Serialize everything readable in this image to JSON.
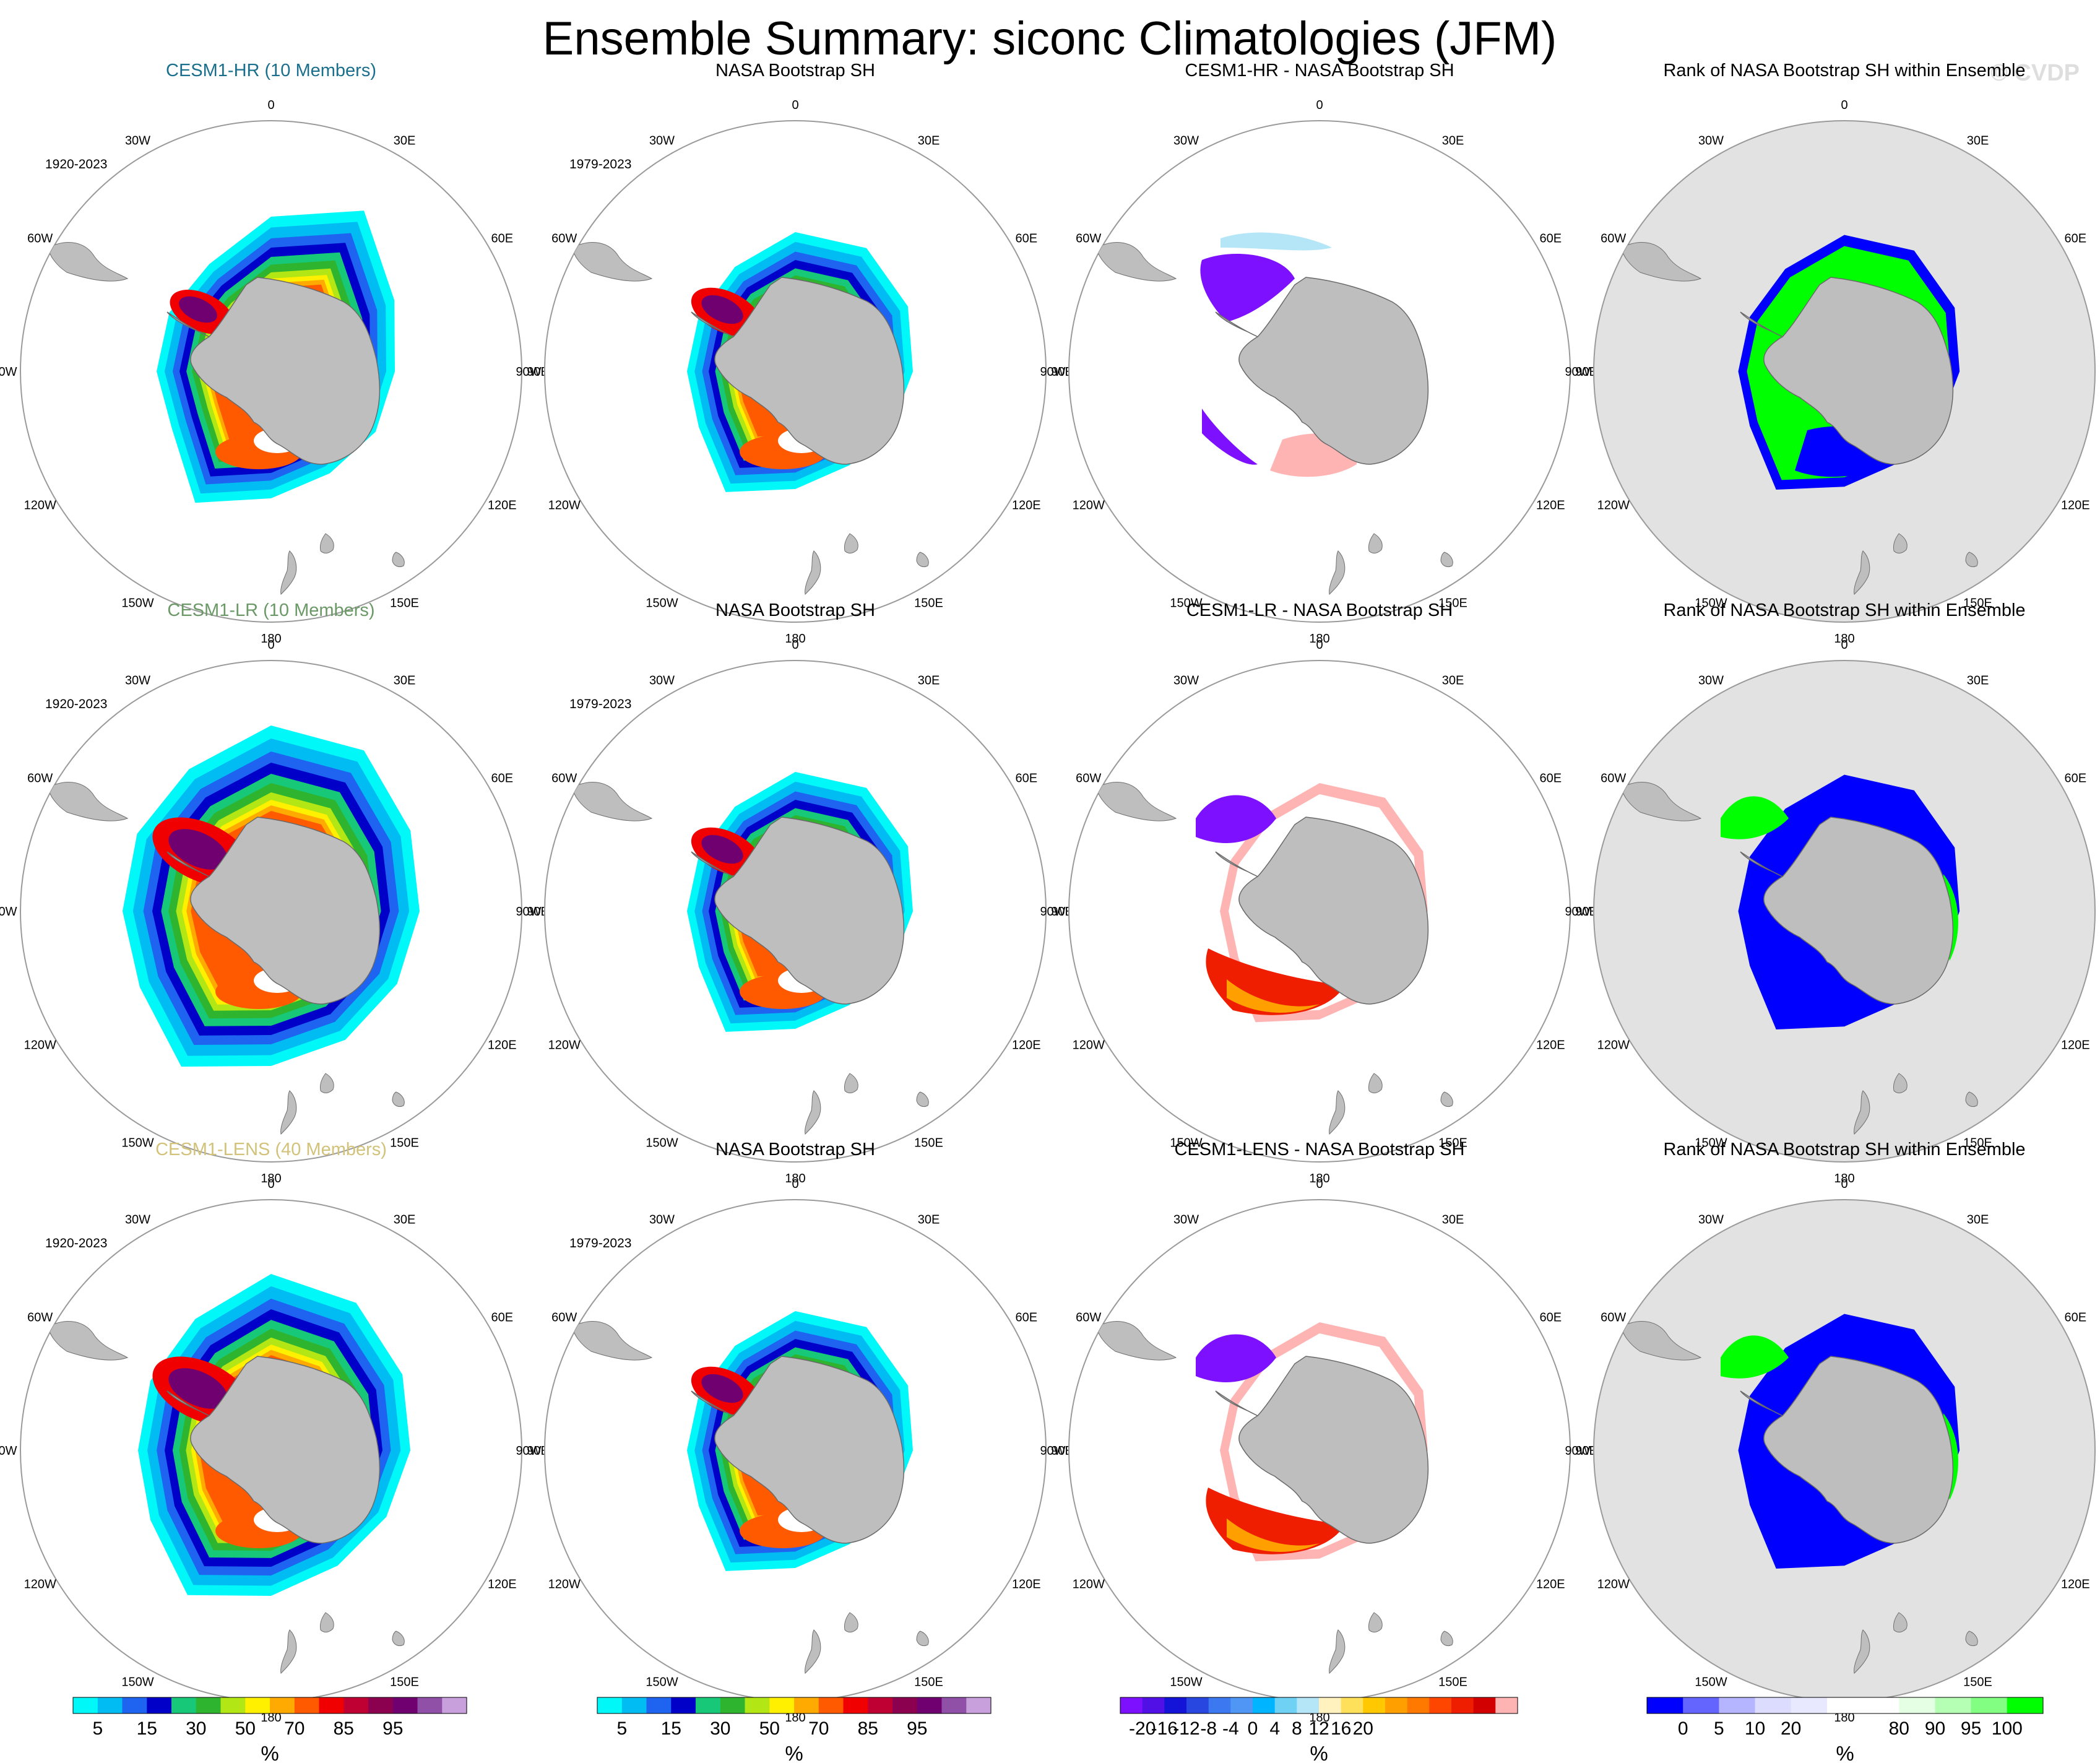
{
  "figure": {
    "title": "Ensemble Summary: siconc Climatologies (JFM)",
    "watermark": "© CVDP",
    "background": "#ffffff"
  },
  "lon_labels": [
    {
      "text": "0",
      "deg": 0
    },
    {
      "text": "30E",
      "deg": 30
    },
    {
      "text": "60E",
      "deg": 60
    },
    {
      "text": "90E",
      "deg": 90
    },
    {
      "text": "120E",
      "deg": 120
    },
    {
      "text": "150E",
      "deg": 150
    },
    {
      "text": "180",
      "deg": 180
    },
    {
      "text": "150W",
      "deg": 210
    },
    {
      "text": "120W",
      "deg": 240
    },
    {
      "text": "90W",
      "deg": 270
    },
    {
      "text": "60W",
      "deg": 300
    },
    {
      "text": "30W",
      "deg": 330
    }
  ],
  "colors": {
    "land": "#bebebe",
    "rank_ocean": "#e2e2e2",
    "panel_ring": "#9a9a9a"
  },
  "rows": [
    {
      "model": "CESM1-HR",
      "model_color": "#1a6f8c",
      "ensemble_title": "CESM1-HR (10 Members)",
      "model_years": "1920-2023",
      "obs_title": "NASA Bootstrap SH",
      "obs_years": "1979-2023",
      "diff_title": "CESM1-HR - NASA Bootstrap SH",
      "rank_title": "Rank of NASA Bootstrap SH within Ensemble"
    },
    {
      "model": "CESM1-LR",
      "model_color": "#6a9966",
      "ensemble_title": "CESM1-LR (10 Members)",
      "model_years": "1920-2023",
      "obs_title": "NASA Bootstrap SH",
      "obs_years": "1979-2023",
      "diff_title": "CESM1-LR - NASA Bootstrap SH",
      "rank_title": "Rank of NASA Bootstrap SH within Ensemble"
    },
    {
      "model": "CESM1-LENS",
      "model_color": "#d2c27a",
      "ensemble_title": "CESM1-LENS (40 Members)",
      "model_years": "1920-2023",
      "obs_title": "NASA Bootstrap SH",
      "obs_years": "1979-2023",
      "diff_title": "CESM1-LENS - NASA Bootstrap SH",
      "rank_title": "Rank of NASA Bootstrap SH within Ensemble"
    }
  ],
  "colorbars": [
    {
      "name": "concentration",
      "unit": "%",
      "colors": [
        "#00f8f8",
        "#00bcf2",
        "#1e64f0",
        "#0000c8",
        "#16c878",
        "#2eb42e",
        "#b2e614",
        "#fff000",
        "#ffaa00",
        "#ff5a00",
        "#f00000",
        "#be0032",
        "#8c0050",
        "#700070",
        "#9050a8",
        "#c8a0dc"
      ],
      "labels": [
        {
          "text": "5",
          "at": 1
        },
        {
          "text": "15",
          "at": 3
        },
        {
          "text": "30",
          "at": 5
        },
        {
          "text": "50",
          "at": 7
        },
        {
          "text": "70",
          "at": 9
        },
        {
          "text": "85",
          "at": 11
        },
        {
          "text": "95",
          "at": 13
        }
      ]
    },
    {
      "name": "concentration-obs",
      "unit": "%",
      "colors": [
        "#00f8f8",
        "#00bcf2",
        "#1e64f0",
        "#0000c8",
        "#16c878",
        "#2eb42e",
        "#b2e614",
        "#fff000",
        "#ffaa00",
        "#ff5a00",
        "#f00000",
        "#be0032",
        "#8c0050",
        "#700070",
        "#9050a8",
        "#c8a0dc"
      ],
      "labels": [
        {
          "text": "5",
          "at": 1
        },
        {
          "text": "15",
          "at": 3
        },
        {
          "text": "30",
          "at": 5
        },
        {
          "text": "50",
          "at": 7
        },
        {
          "text": "70",
          "at": 9
        },
        {
          "text": "85",
          "at": 11
        },
        {
          "text": "95",
          "at": 13
        }
      ]
    },
    {
      "name": "difference",
      "unit": "%",
      "colors": [
        "#7d10ff",
        "#5010e6",
        "#1414d8",
        "#2846e0",
        "#3c78f0",
        "#5096f5",
        "#00b4ff",
        "#6fd2f5",
        "#b4e6f8",
        "#fff2be",
        "#ffe05a",
        "#ffc800",
        "#ffa000",
        "#ff7800",
        "#ff4600",
        "#f01e00",
        "#d20000",
        "#ffb4b4"
      ],
      "labels": [
        {
          "text": "-20",
          "at": 1
        },
        {
          "text": "-16",
          "at": 2
        },
        {
          "text": "-12",
          "at": 3
        },
        {
          "text": "-8",
          "at": 4
        },
        {
          "text": "-4",
          "at": 5
        },
        {
          "text": "0",
          "at": 6
        },
        {
          "text": "4",
          "at": 7
        },
        {
          "text": "8",
          "at": 8
        },
        {
          "text": "12",
          "at": 9
        },
        {
          "text": "16",
          "at": 10
        },
        {
          "text": "20",
          "at": 11
        }
      ]
    },
    {
      "name": "rank",
      "unit": "%",
      "colors": [
        "#0000ff",
        "#6464ff",
        "#b4b4ff",
        "#dcdcff",
        "#e8e8ff",
        "#ffffff",
        "#ffffff",
        "#e4ffe4",
        "#b4ffb4",
        "#82ff82",
        "#00ff00"
      ],
      "labels": [
        {
          "text": "0",
          "at": 1
        },
        {
          "text": "5",
          "at": 2
        },
        {
          "text": "10",
          "at": 3
        },
        {
          "text": "20",
          "at": 4
        },
        {
          "text": "80",
          "at": 7
        },
        {
          "text": "90",
          "at": 8
        },
        {
          "text": "95",
          "at": 9
        },
        {
          "text": "100",
          "at": 10
        }
      ]
    }
  ]
}
